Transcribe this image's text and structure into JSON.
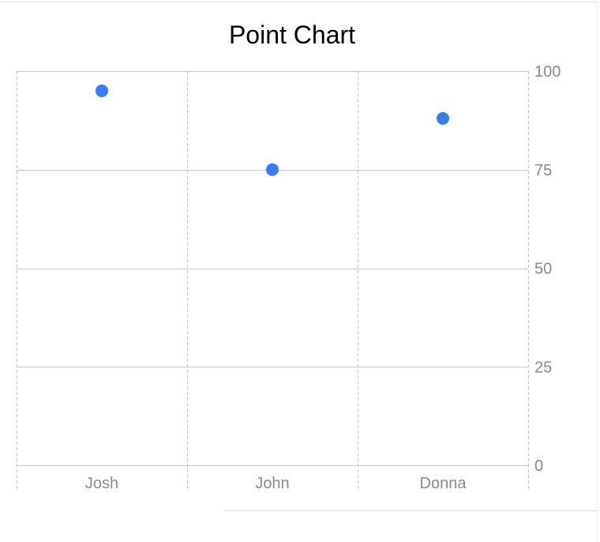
{
  "colors": {
    "point": "#3b7ded",
    "grid": "#c8c8c8",
    "grid_dashed": "#c8c8c8",
    "tick_label": "#8a8a8e",
    "title": "#000000"
  },
  "chart_data": {
    "type": "scatter",
    "title": "Point Chart",
    "xlabel": "",
    "ylabel": "",
    "categories": [
      "Josh",
      "John",
      "Donna"
    ],
    "values": [
      95,
      75,
      88
    ],
    "ylim": [
      0,
      100
    ],
    "yticks": [
      "0",
      "25",
      "50",
      "75",
      "100"
    ],
    "y_axis_position": "right",
    "grid": true
  }
}
